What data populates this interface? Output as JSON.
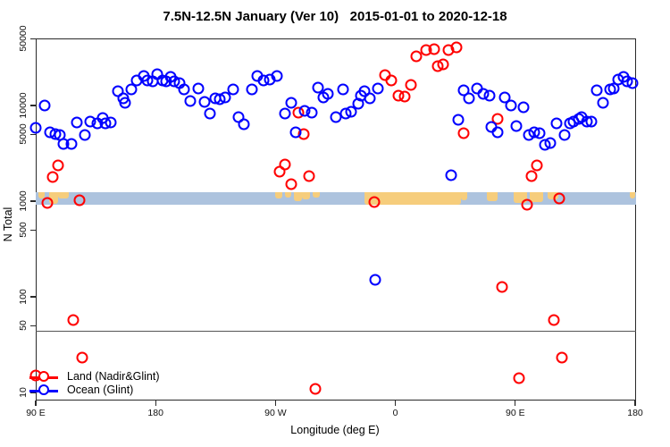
{
  "title": "7.5N-12.5N January (Ver 10)   2015-01-01 to 2020-12-18",
  "legend": {
    "items": [
      {
        "label": "Land (Nadir&Glint)",
        "color": "#ff0000"
      },
      {
        "label": "Ocean (Glint)",
        "color": "#0000ff"
      }
    ]
  },
  "chart_data": {
    "type": "scatter",
    "title": "7.5N-12.5N January (Ver 10)   2015-01-01 to 2020-12-18",
    "xlabel": "Longitude (deg E)",
    "ylabel": "N Total",
    "x_axis": {
      "note": "longitude axis wraps eastward: 90E,180,90W,0,90E,180 (values stored as continuous deg E 90..540)",
      "range": [
        90,
        540
      ],
      "ticks": [
        {
          "value": 90,
          "label": "90 E"
        },
        {
          "value": 180,
          "label": "180"
        },
        {
          "value": 270,
          "label": "90 W"
        },
        {
          "value": 360,
          "label": "0"
        },
        {
          "value": 450,
          "label": "90 E"
        },
        {
          "value": 540,
          "label": "180"
        }
      ]
    },
    "y_axis": {
      "scale": "log10",
      "range": [
        9,
        55000
      ],
      "ticks": [
        50000,
        10000,
        5000,
        1000,
        500,
        100,
        50,
        10
      ]
    },
    "reference_band": {
      "n_min": 920,
      "n_max": 1240,
      "color": "#adc3de"
    },
    "land_patch_color": "#f6cd7c",
    "land_patches": [
      [
        92,
        97,
        0.5
      ],
      [
        100,
        107,
        0.95
      ],
      [
        107,
        115,
        0.5
      ],
      [
        270,
        275,
        0.5
      ],
      [
        277,
        282,
        0.45
      ],
      [
        284,
        290,
        0.75
      ],
      [
        290,
        296,
        0.6
      ],
      [
        298,
        303,
        0.45
      ],
      [
        337,
        409,
        1.0
      ],
      [
        409,
        414,
        0.65
      ],
      [
        429,
        437,
        0.7
      ],
      [
        449,
        459,
        0.85
      ],
      [
        461,
        471,
        0.8
      ],
      [
        474,
        482,
        0.6
      ],
      [
        536,
        540,
        0.5
      ]
    ],
    "reference_line_n": 44,
    "series": [
      {
        "name": "Land (Nadir&Glint)",
        "color": "#ff0000",
        "points": [
          [
            107,
            2380
          ],
          [
            103,
            1790
          ],
          [
            99,
            960
          ],
          [
            123,
            1020
          ],
          [
            118,
            57
          ],
          [
            125,
            23
          ],
          [
            90,
            15
          ],
          [
            287,
            8400
          ],
          [
            291,
            5050
          ],
          [
            277,
            2400
          ],
          [
            273,
            2030
          ],
          [
            282,
            1510
          ],
          [
            295,
            1830
          ],
          [
            344,
            980
          ],
          [
            376,
            32900
          ],
          [
            383,
            38300
          ],
          [
            389,
            39100
          ],
          [
            400,
            38300
          ],
          [
            406,
            40800
          ],
          [
            392,
            25800
          ],
          [
            396,
            26900
          ],
          [
            352,
            20900
          ],
          [
            357,
            18300
          ],
          [
            362,
            12700
          ],
          [
            367,
            12400
          ],
          [
            372,
            16300
          ],
          [
            437,
            7250
          ],
          [
            411,
            5100
          ],
          [
            466,
            2380
          ],
          [
            462,
            1830
          ],
          [
            459,
            920
          ],
          [
            483,
            1070
          ],
          [
            300,
            11
          ],
          [
            440,
            127
          ],
          [
            479,
            57
          ],
          [
            485,
            23
          ],
          [
            453,
            14
          ]
        ]
      },
      {
        "name": "Ocean (Glint)",
        "color": "#0000ff",
        "points": [
          [
            90,
            5800
          ],
          [
            97,
            10000
          ],
          [
            101,
            5250
          ],
          [
            105,
            5000
          ],
          [
            108,
            4900
          ],
          [
            111,
            3950
          ],
          [
            117,
            3950
          ],
          [
            121,
            6650
          ],
          [
            127,
            4900
          ],
          [
            131,
            6800
          ],
          [
            136,
            6500
          ],
          [
            140,
            7400
          ],
          [
            142,
            6500
          ],
          [
            146,
            6650
          ],
          [
            152,
            14200
          ],
          [
            156,
            11900
          ],
          [
            157,
            10700
          ],
          [
            162,
            14800
          ],
          [
            166,
            18300
          ],
          [
            171,
            20400
          ],
          [
            174,
            18300
          ],
          [
            178,
            17900
          ],
          [
            181,
            21300
          ],
          [
            185,
            18300
          ],
          [
            188,
            17900
          ],
          [
            191,
            19700
          ],
          [
            194,
            17900
          ],
          [
            198,
            17100
          ],
          [
            201,
            14800
          ],
          [
            206,
            11100
          ],
          [
            212,
            15100
          ],
          [
            217,
            10800
          ],
          [
            221,
            8200
          ],
          [
            225,
            11900
          ],
          [
            228,
            11600
          ],
          [
            232,
            12200
          ],
          [
            238,
            14800
          ],
          [
            242,
            7600
          ],
          [
            246,
            6350
          ],
          [
            252,
            14800
          ],
          [
            256,
            20400
          ],
          [
            261,
            18300
          ],
          [
            266,
            18700
          ],
          [
            271,
            20400
          ],
          [
            277,
            8200
          ],
          [
            282,
            10700
          ],
          [
            285,
            5300
          ],
          [
            292,
            8800
          ],
          [
            297,
            8400
          ],
          [
            302,
            15400
          ],
          [
            306,
            12200
          ],
          [
            309,
            13300
          ],
          [
            315,
            7600
          ],
          [
            321,
            14800
          ],
          [
            323,
            8200
          ],
          [
            327,
            8600
          ],
          [
            332,
            10400
          ],
          [
            334,
            12800
          ],
          [
            337,
            14100
          ],
          [
            341,
            11900
          ],
          [
            347,
            15200
          ],
          [
            345,
            150
          ],
          [
            402,
            1870
          ],
          [
            407,
            7100
          ],
          [
            411,
            14400
          ],
          [
            415,
            11900
          ],
          [
            421,
            15200
          ],
          [
            426,
            13300
          ],
          [
            431,
            12700
          ],
          [
            432,
            5950
          ],
          [
            437,
            5250
          ],
          [
            442,
            12200
          ],
          [
            447,
            10000
          ],
          [
            451,
            6100
          ],
          [
            456,
            9550
          ],
          [
            460,
            4900
          ],
          [
            464,
            5250
          ],
          [
            468,
            5150
          ],
          [
            472,
            3900
          ],
          [
            476,
            4050
          ],
          [
            481,
            6500
          ],
          [
            487,
            4900
          ],
          [
            491,
            6500
          ],
          [
            494,
            6800
          ],
          [
            498,
            7250
          ],
          [
            500,
            7600
          ],
          [
            504,
            6800
          ],
          [
            507,
            6800
          ],
          [
            511,
            14400
          ],
          [
            516,
            10700
          ],
          [
            521,
            14800
          ],
          [
            524,
            15200
          ],
          [
            527,
            18700
          ],
          [
            531,
            19900
          ],
          [
            534,
            17900
          ],
          [
            538,
            17100
          ]
        ]
      }
    ]
  }
}
